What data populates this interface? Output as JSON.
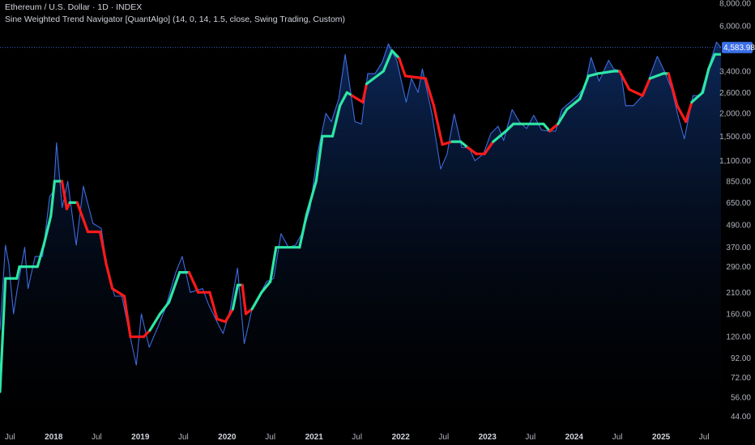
{
  "header": {
    "symbol_title": "Ethereum / U.S. Dollar · 1D · INDEX",
    "indicator_label": "Sine Weighted Trend Navigator [QuantAlgo] (14, 0, 14, 1.5, close, Swing Trading, Custom)"
  },
  "colors": {
    "background": "#000000",
    "price_line": "#3d6be0",
    "trend_up": "#2ee6a6",
    "trend_down": "#ff1a1a",
    "area_top": "#0d2a5e",
    "last_price_tag": "#3b6ee6",
    "axis_text": "#b2b5be"
  },
  "chart_data": {
    "type": "line",
    "y_scale": "log",
    "ylim": [
      40,
      8000
    ],
    "y_tick_labels": [
      "8,000.00",
      "6,000.00",
      "4,583.98",
      "3,400.00",
      "2,600.00",
      "2,000.00",
      "1,500.00",
      "1,100.00",
      "850.00",
      "650.00",
      "490.00",
      "370.00",
      "290.00",
      "210.00",
      "160.00",
      "120.00",
      "92.00",
      "72.00",
      "56.00",
      "44.00"
    ],
    "y_ticks": [
      8000,
      6000,
      3400,
      2600,
      2000,
      1500,
      1100,
      850,
      650,
      490,
      370,
      290,
      210,
      160,
      120,
      92,
      72,
      56,
      44
    ],
    "x_range": [
      "2017-05-20",
      "2025-09-10"
    ],
    "x_tick_labels": [
      {
        "date": "2017-07-01",
        "label": "Jul",
        "bold": false
      },
      {
        "date": "2018-01-01",
        "label": "2018",
        "bold": true
      },
      {
        "date": "2018-07-01",
        "label": "Jul",
        "bold": false
      },
      {
        "date": "2019-01-01",
        "label": "2019",
        "bold": true
      },
      {
        "date": "2019-07-01",
        "label": "Jul",
        "bold": false
      },
      {
        "date": "2020-01-01",
        "label": "2020",
        "bold": true
      },
      {
        "date": "2020-07-01",
        "label": "Jul",
        "bold": false
      },
      {
        "date": "2021-01-01",
        "label": "2021",
        "bold": true
      },
      {
        "date": "2021-07-01",
        "label": "Jul",
        "bold": false
      },
      {
        "date": "2022-01-01",
        "label": "2022",
        "bold": true
      },
      {
        "date": "2022-07-01",
        "label": "Jul",
        "bold": false
      },
      {
        "date": "2023-01-01",
        "label": "2023",
        "bold": true
      },
      {
        "date": "2023-07-01",
        "label": "Jul",
        "bold": false
      },
      {
        "date": "2024-01-01",
        "label": "2024",
        "bold": true
      },
      {
        "date": "2024-07-01",
        "label": "Jul",
        "bold": false
      },
      {
        "date": "2025-01-01",
        "label": "2025",
        "bold": true
      },
      {
        "date": "2025-07-01",
        "label": "Jul",
        "bold": false
      }
    ],
    "last_price": 4583.98,
    "last_price_label": "4,583.98",
    "series": [
      {
        "name": "Price",
        "points": [
          [
            "2017-05-20",
            130
          ],
          [
            "2017-06-12",
            380
          ],
          [
            "2017-06-26",
            300
          ],
          [
            "2017-07-16",
            160
          ],
          [
            "2017-08-01",
            220
          ],
          [
            "2017-09-01",
            370
          ],
          [
            "2017-09-15",
            220
          ],
          [
            "2017-10-15",
            330
          ],
          [
            "2017-11-15",
            330
          ],
          [
            "2017-12-15",
            700
          ],
          [
            "2018-01-01",
            750
          ],
          [
            "2018-01-13",
            1380
          ],
          [
            "2018-02-06",
            610
          ],
          [
            "2018-03-01",
            850
          ],
          [
            "2018-04-06",
            380
          ],
          [
            "2018-05-06",
            800
          ],
          [
            "2018-06-15",
            500
          ],
          [
            "2018-07-20",
            470
          ],
          [
            "2018-08-15",
            280
          ],
          [
            "2018-09-15",
            200
          ],
          [
            "2018-10-15",
            200
          ],
          [
            "2018-11-25",
            110
          ],
          [
            "2018-12-15",
            84
          ],
          [
            "2019-01-05",
            160
          ],
          [
            "2019-02-07",
            105
          ],
          [
            "2019-03-15",
            135
          ],
          [
            "2019-04-15",
            170
          ],
          [
            "2019-05-30",
            270
          ],
          [
            "2019-06-26",
            330
          ],
          [
            "2019-07-30",
            210
          ],
          [
            "2019-09-20",
            220
          ],
          [
            "2019-10-15",
            180
          ],
          [
            "2019-11-25",
            140
          ],
          [
            "2019-12-15",
            125
          ],
          [
            "2020-01-15",
            170
          ],
          [
            "2020-02-14",
            285
          ],
          [
            "2020-03-13",
            110
          ],
          [
            "2020-04-15",
            170
          ],
          [
            "2020-05-15",
            200
          ],
          [
            "2020-06-15",
            240
          ],
          [
            "2020-07-15",
            250
          ],
          [
            "2020-08-15",
            440
          ],
          [
            "2020-09-15",
            370
          ],
          [
            "2020-10-15",
            380
          ],
          [
            "2020-11-15",
            450
          ],
          [
            "2020-12-15",
            600
          ],
          [
            "2021-01-15",
            1200
          ],
          [
            "2021-02-20",
            2000
          ],
          [
            "2021-03-15",
            1800
          ],
          [
            "2021-04-15",
            2400
          ],
          [
            "2021-05-12",
            4200
          ],
          [
            "2021-06-22",
            1800
          ],
          [
            "2021-07-20",
            1750
          ],
          [
            "2021-08-15",
            3300
          ],
          [
            "2021-09-15",
            3300
          ],
          [
            "2021-10-15",
            3800
          ],
          [
            "2021-11-10",
            4800
          ],
          [
            "2021-12-15",
            3900
          ],
          [
            "2022-01-24",
            2300
          ],
          [
            "2022-02-15",
            3100
          ],
          [
            "2022-03-15",
            2600
          ],
          [
            "2022-04-02",
            3500
          ],
          [
            "2022-05-12",
            2000
          ],
          [
            "2022-06-18",
            990
          ],
          [
            "2022-07-15",
            1200
          ],
          [
            "2022-08-14",
            1980
          ],
          [
            "2022-09-15",
            1300
          ],
          [
            "2022-10-15",
            1300
          ],
          [
            "2022-11-09",
            1100
          ],
          [
            "2022-12-15",
            1200
          ],
          [
            "2023-01-15",
            1550
          ],
          [
            "2023-02-15",
            1700
          ],
          [
            "2023-03-10",
            1420
          ],
          [
            "2023-04-15",
            2100
          ],
          [
            "2023-05-15",
            1800
          ],
          [
            "2023-06-15",
            1650
          ],
          [
            "2023-07-15",
            1950
          ],
          [
            "2023-08-17",
            1620
          ],
          [
            "2023-09-15",
            1600
          ],
          [
            "2023-10-15",
            1600
          ],
          [
            "2023-11-10",
            2100
          ],
          [
            "2023-12-15",
            2300
          ],
          [
            "2024-01-15",
            2500
          ],
          [
            "2024-02-15",
            2800
          ],
          [
            "2024-03-12",
            4050
          ],
          [
            "2024-04-15",
            3000
          ],
          [
            "2024-05-25",
            3900
          ],
          [
            "2024-06-15",
            3500
          ],
          [
            "2024-07-15",
            3400
          ],
          [
            "2024-08-05",
            2200
          ],
          [
            "2024-09-06",
            2200
          ],
          [
            "2024-10-15",
            2500
          ],
          [
            "2024-11-15",
            3200
          ],
          [
            "2024-12-16",
            4100
          ],
          [
            "2025-01-15",
            3400
          ],
          [
            "2025-02-15",
            2700
          ],
          [
            "2025-03-15",
            1900
          ],
          [
            "2025-04-09",
            1450
          ],
          [
            "2025-05-15",
            2500
          ],
          [
            "2025-06-15",
            2500
          ],
          [
            "2025-07-15",
            3400
          ],
          [
            "2025-08-22",
            4900
          ],
          [
            "2025-09-10",
            4584
          ]
        ]
      },
      {
        "name": "Trend",
        "points": [
          [
            "2017-05-20",
            60,
            "up"
          ],
          [
            "2017-06-12",
            250,
            "up"
          ],
          [
            "2017-07-30",
            250,
            "up"
          ],
          [
            "2017-08-10",
            290,
            "up"
          ],
          [
            "2017-10-25",
            290,
            "up"
          ],
          [
            "2017-11-20",
            380,
            "up"
          ],
          [
            "2017-12-20",
            550,
            "up"
          ],
          [
            "2018-01-05",
            850,
            "up"
          ],
          [
            "2018-02-05",
            850,
            "down"
          ],
          [
            "2018-02-25",
            600,
            "down"
          ],
          [
            "2018-03-10",
            650,
            "up"
          ],
          [
            "2018-04-10",
            650,
            "down"
          ],
          [
            "2018-05-25",
            450,
            "down"
          ],
          [
            "2018-07-15",
            450,
            "down"
          ],
          [
            "2018-08-10",
            300,
            "down"
          ],
          [
            "2018-09-05",
            220,
            "down"
          ],
          [
            "2018-10-25",
            200,
            "down"
          ],
          [
            "2018-11-20",
            120,
            "down"
          ],
          [
            "2019-01-15",
            120,
            "down"
          ],
          [
            "2019-02-10",
            130,
            "up"
          ],
          [
            "2019-03-25",
            160,
            "up"
          ],
          [
            "2019-05-01",
            185,
            "up"
          ],
          [
            "2019-06-15",
            270,
            "up"
          ],
          [
            "2019-07-25",
            270,
            "down"
          ],
          [
            "2019-09-01",
            210,
            "down"
          ],
          [
            "2019-10-20",
            210,
            "down"
          ],
          [
            "2019-11-20",
            150,
            "down"
          ],
          [
            "2019-12-25",
            145,
            "down"
          ],
          [
            "2020-01-25",
            170,
            "up"
          ],
          [
            "2020-02-15",
            230,
            "up"
          ],
          [
            "2020-03-05",
            230,
            "down"
          ],
          [
            "2020-03-20",
            160,
            "down"
          ],
          [
            "2020-04-15",
            170,
            "up"
          ],
          [
            "2020-05-25",
            210,
            "up"
          ],
          [
            "2020-07-01",
            240,
            "up"
          ],
          [
            "2020-07-25",
            370,
            "up"
          ],
          [
            "2020-11-01",
            370,
            "up"
          ],
          [
            "2020-12-01",
            560,
            "up"
          ],
          [
            "2021-01-10",
            850,
            "up"
          ],
          [
            "2021-02-05",
            1500,
            "up"
          ],
          [
            "2021-03-20",
            1500,
            "up"
          ],
          [
            "2021-04-20",
            2200,
            "up"
          ],
          [
            "2021-05-20",
            2600,
            "up"
          ],
          [
            "2021-06-10",
            2500,
            "down"
          ],
          [
            "2021-07-25",
            2300,
            "down"
          ],
          [
            "2021-08-10",
            2900,
            "up"
          ],
          [
            "2021-10-20",
            3400,
            "up"
          ],
          [
            "2021-11-25",
            4400,
            "up"
          ],
          [
            "2021-12-25",
            4000,
            "down"
          ],
          [
            "2022-01-20",
            3200,
            "down"
          ],
          [
            "2022-04-15",
            3100,
            "down"
          ],
          [
            "2022-05-20",
            2200,
            "down"
          ],
          [
            "2022-06-25",
            1350,
            "down"
          ],
          [
            "2022-08-05",
            1400,
            "up"
          ],
          [
            "2022-09-10",
            1400,
            "up"
          ],
          [
            "2022-10-10",
            1300,
            "down"
          ],
          [
            "2022-11-15",
            1200,
            "down"
          ],
          [
            "2022-12-20",
            1200,
            "down"
          ],
          [
            "2023-01-25",
            1400,
            "up"
          ],
          [
            "2023-03-20",
            1600,
            "up"
          ],
          [
            "2023-04-20",
            1750,
            "up"
          ],
          [
            "2023-08-25",
            1750,
            "up"
          ],
          [
            "2023-09-20",
            1600,
            "down"
          ],
          [
            "2023-10-25",
            1750,
            "up"
          ],
          [
            "2023-12-01",
            2100,
            "up"
          ],
          [
            "2024-01-25",
            2400,
            "up"
          ],
          [
            "2024-03-01",
            3200,
            "up"
          ],
          [
            "2024-04-10",
            3300,
            "up"
          ],
          [
            "2024-06-15",
            3400,
            "up"
          ],
          [
            "2024-07-10",
            3400,
            "down"
          ],
          [
            "2024-08-20",
            2700,
            "down"
          ],
          [
            "2024-10-15",
            2500,
            "down"
          ],
          [
            "2024-11-15",
            3100,
            "up"
          ],
          [
            "2025-01-10",
            3300,
            "up"
          ],
          [
            "2025-02-01",
            3300,
            "down"
          ],
          [
            "2025-03-10",
            2200,
            "down"
          ],
          [
            "2025-04-15",
            1800,
            "down"
          ],
          [
            "2025-05-10",
            2300,
            "up"
          ],
          [
            "2025-06-25",
            2600,
            "up"
          ],
          [
            "2025-07-20",
            3500,
            "up"
          ],
          [
            "2025-08-15",
            4200,
            "up"
          ],
          [
            "2025-09-10",
            4200,
            "up"
          ]
        ]
      }
    ]
  }
}
